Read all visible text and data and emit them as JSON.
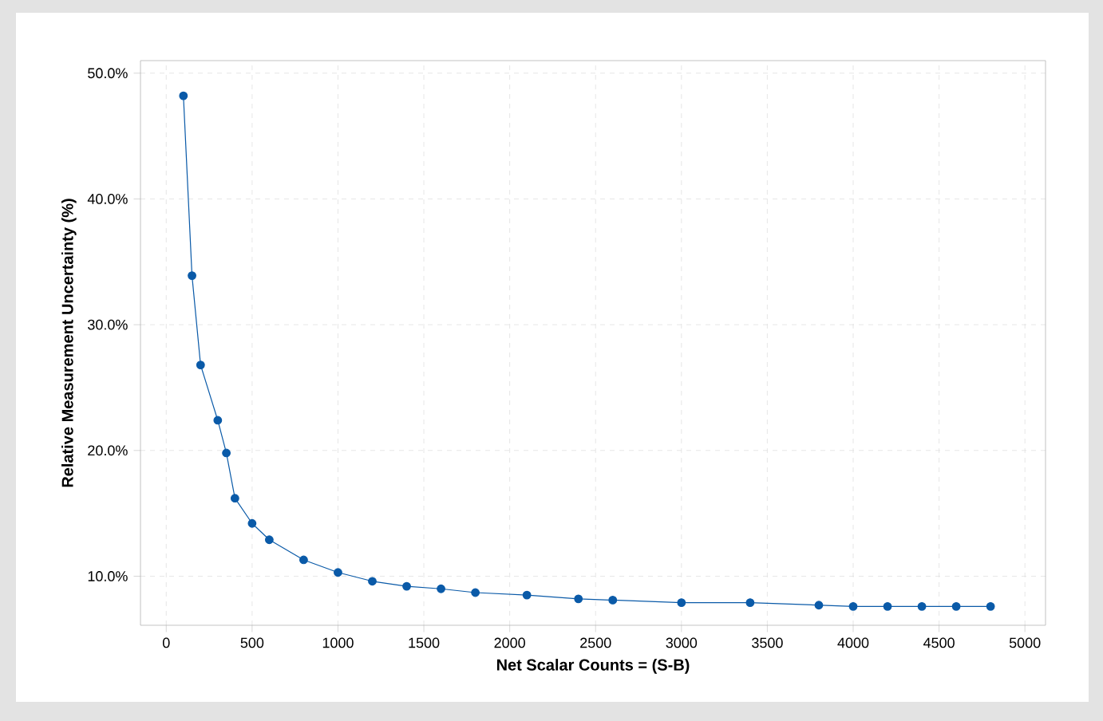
{
  "chart_data": {
    "type": "line",
    "xlabel": "Net Scalar Counts = (S-B)",
    "ylabel": "Relative Measurement Uncertainty (%)",
    "x": [
      100,
      150,
      200,
      300,
      350,
      400,
      500,
      600,
      800,
      1000,
      1200,
      1400,
      1600,
      1800,
      2100,
      2400,
      2600,
      3000,
      3400,
      3800,
      4000,
      4200,
      4400,
      4600,
      4800
    ],
    "series": [
      {
        "color": "#0a5aa8",
        "values": [
          48.2,
          33.9,
          26.8,
          22.4,
          19.8,
          16.2,
          14.2,
          12.9,
          11.3,
          10.3,
          9.6,
          9.2,
          9.0,
          8.7,
          8.5,
          8.2,
          8.1,
          7.9,
          7.9,
          7.7,
          7.6,
          7.6,
          7.6,
          7.6,
          7.6
        ]
      }
    ],
    "xlim": [
      -150,
      5120
    ],
    "ylim": [
      6.1,
      51.0
    ],
    "xticks": [
      0,
      500,
      1000,
      1500,
      2000,
      2500,
      3000,
      3500,
      4000,
      4500,
      5000
    ],
    "yticks": [
      {
        "value": 10,
        "label": "10.0%"
      },
      {
        "value": 20,
        "label": "20.0%"
      },
      {
        "value": 30,
        "label": "30.0%"
      },
      {
        "value": 40,
        "label": "40.0%"
      },
      {
        "value": 50,
        "label": "50.0%"
      }
    ],
    "grid": true,
    "marker": "circle",
    "line_style": "solid"
  }
}
